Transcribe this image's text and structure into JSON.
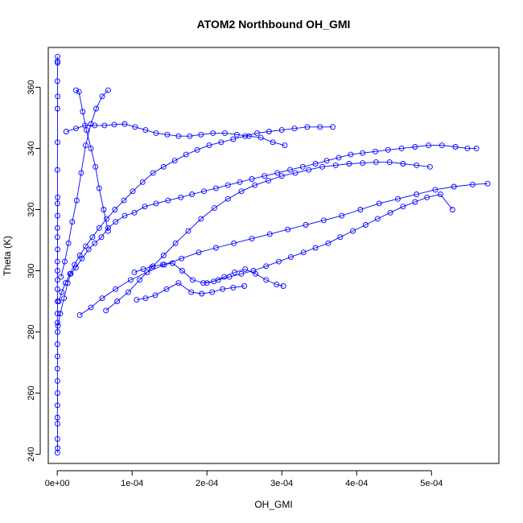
{
  "chart_data": {
    "type": "scatter",
    "title": "ATOM2 Northbound OH_GMI",
    "xlabel": "OH_GMI",
    "ylabel": "Theta (K)",
    "xlim": [
      -1.2e-05,
      0.00059
    ],
    "ylim": [
      237,
      373
    ],
    "grid": false,
    "legend": "none",
    "x_ticks": [
      {
        "value": 0,
        "label": "0e+00"
      },
      {
        "value": 0.0001,
        "label": "1e-04"
      },
      {
        "value": 0.0002,
        "label": "2e-04"
      },
      {
        "value": 0.0003,
        "label": "3e-04"
      },
      {
        "value": 0.0004,
        "label": "4e-04"
      },
      {
        "value": 0.0005,
        "label": "5e-04"
      }
    ],
    "y_ticks": [
      {
        "value": 240,
        "label": "240"
      },
      {
        "value": 260,
        "label": "260"
      },
      {
        "value": 280,
        "label": "280"
      },
      {
        "value": 300,
        "label": "300"
      },
      {
        "value": 320,
        "label": "320"
      },
      {
        "value": 340,
        "label": "340"
      },
      {
        "value": 360,
        "label": "360"
      }
    ],
    "colors": {
      "series": "#0000ff",
      "axis": "#000000",
      "background": "#ffffff"
    },
    "series": [
      {
        "x": [
          5e-07,
          3e-07,
          4e-07,
          2e-07,
          6e-07,
          3e-07,
          4e-07,
          2e-07,
          5e-07,
          3e-07,
          4e-07,
          2e-07,
          3e-07,
          5e-07,
          2e-07,
          4e-07,
          3e-07,
          2e-07,
          4e-07,
          3e-07,
          2e-07,
          5e-07,
          3e-07,
          4e-07,
          2e-07,
          3e-07,
          4e-07,
          3e-07,
          2e-07,
          4e-07,
          3e-07,
          5e-07,
          2e-07
        ],
        "y": [
          370,
          368.5,
          368,
          362,
          357,
          353,
          342,
          333,
          324,
          322,
          318,
          314,
          311,
          307,
          303,
          300,
          297,
          294,
          290,
          286,
          283,
          280,
          276,
          272,
          268,
          264,
          260,
          256,
          252,
          250,
          245,
          242,
          240.5
        ]
      },
      {
        "x": [
          1e-06,
          4e-06,
          9e-06,
          1.4e-05,
          1.8e-05,
          2.5e-05,
          3.3e-05,
          4.2e-05,
          5e-05,
          5.9e-05,
          6.8e-05,
          7.8e-05,
          9e-05,
          0.000103,
          0.000117,
          0.000132,
          0.000148,
          0.000165,
          0.00018,
          0.000196,
          0.000212,
          0.000228,
          0.000244,
          0.00026,
          0.000277,
          0.000294,
          0.000311,
          0.000328,
          0.000345,
          0.00036,
          0.000376,
          0.000392,
          0.000408,
          0.000425,
          0.000442,
          0.00046,
          0.000478,
          0.000496,
          0.000514,
          0.000532,
          0.000548,
          0.00056
        ],
        "y": [
          282,
          286,
          291,
          296,
          299,
          301,
          304,
          307,
          309,
          311,
          314,
          316,
          318,
          319,
          321,
          322,
          323,
          324,
          325,
          326,
          327,
          328,
          329,
          330,
          331,
          332,
          333,
          334,
          335,
          336,
          337,
          338,
          338.5,
          339,
          339.5,
          340,
          340.5,
          341,
          341,
          340.5,
          340,
          340
        ]
      },
      {
        "x": [
          2e-06,
          6e-06,
          1.1e-05,
          1.7e-05,
          2.3e-05,
          3e-05,
          3.8e-05,
          4.7e-05,
          5.6e-05,
          6.6e-05,
          7.7e-05,
          8.9e-05,
          0.000101,
          0.000114,
          0.000128,
          0.000142,
          0.000157,
          0.000172,
          0.000187,
          0.000203,
          0.000219,
          0.000235,
          0.000251,
          0.000267,
          0.000283,
          0.0003,
          0.000317,
          0.000334,
          0.000351,
          0.000368
        ],
        "y": [
          290,
          293,
          296,
          299,
          302,
          305,
          308,
          311,
          314,
          317,
          320,
          323,
          326,
          329,
          332,
          334,
          336,
          338,
          339.5,
          341,
          342,
          343,
          344,
          345,
          345.5,
          346,
          346.5,
          347,
          347,
          347
        ]
      },
      {
        "x": [
          1.2e-05,
          2.5e-05,
          3.7e-05,
          5e-05,
          6.3e-05,
          7.6e-05,
          9e-05,
          0.000104,
          0.000118,
          0.000132,
          0.000147,
          0.000162,
          0.000177,
          0.000192,
          0.000208,
          0.000224,
          0.00024,
          0.000256,
          0.000272,
          0.000288,
          0.000304
        ],
        "y": [
          345.5,
          346.5,
          347.5,
          347.5,
          347.5,
          347.8,
          348,
          347,
          346,
          345,
          344.5,
          344,
          344,
          344.5,
          345,
          345,
          344.5,
          344,
          343.5,
          342,
          341
        ]
      },
      {
        "x": [
          3e-05,
          4.5e-05,
          6e-05,
          7.8e-05,
          9.8e-05,
          0.00012,
          0.000143,
          0.000166,
          0.000189,
          0.000212,
          0.000236,
          0.00026,
          0.000284,
          0.000308,
          0.000332,
          0.000356,
          0.00038,
          0.000405,
          0.00043,
          0.000455,
          0.00048,
          0.000505,
          0.00053,
          0.000555,
          0.000575
        ],
        "y": [
          285.5,
          288,
          291,
          294,
          297,
          299.5,
          302,
          304,
          306,
          307.5,
          309,
          310.5,
          312,
          313.5,
          315,
          316.5,
          318,
          320,
          322,
          323.5,
          325,
          326.5,
          327.5,
          328.2,
          328.5
        ]
      },
      {
        "x": [
          5e-06,
          1e-05,
          1.5e-05,
          2e-05,
          2.6e-05,
          3.2e-05,
          3.8e-05,
          4.5e-05,
          5.2e-05,
          6e-05,
          6.8e-05
        ],
        "y": [
          298,
          303,
          309,
          316,
          323,
          332,
          341,
          348,
          353,
          357,
          359
        ]
      },
      {
        "x": [
          2.5e-05,
          2.9e-05,
          3.4e-05,
          3.9e-05,
          4.5e-05,
          5.1e-05,
          5.6e-05,
          6.2e-05,
          6.8e-05
        ],
        "y": [
          359,
          358.5,
          352,
          346,
          340,
          334,
          327,
          320,
          313
        ]
      },
      {
        "x": [
          0.000103,
          0.000115,
          0.000128,
          0.000141,
          0.000154,
          0.000167,
          0.000181,
          0.000195,
          0.000209,
          0.000223,
          0.000237,
          0.000251,
          0.000265,
          0.000279,
          0.000293,
          0.000302
        ],
        "y": [
          299.5,
          300.5,
          301.5,
          302,
          302.5,
          300,
          297,
          296,
          296.5,
          298,
          299.5,
          300.5,
          299,
          297,
          295.5,
          295
        ]
      },
      {
        "x": [
          0.000106,
          0.000118,
          0.000131,
          0.000146,
          0.000162,
          0.000179,
          0.000193,
          0.000207,
          0.000221,
          0.000235,
          0.00025
        ],
        "y": [
          290.5,
          291,
          292,
          294,
          296,
          293,
          292.5,
          293,
          294,
          294.5,
          295
        ]
      },
      {
        "x": [
          6.5e-05,
          8e-05,
          9.5e-05,
          0.00011,
          0.000126,
          0.000142,
          0.000158,
          0.000175,
          0.000192,
          0.00021,
          0.000228,
          0.000246,
          0.000264,
          0.000282,
          0.0003,
          0.000318,
          0.000336,
          0.000354,
          0.000372,
          0.00039,
          0.000408,
          0.000426,
          0.000444,
          0.000462,
          0.00048,
          0.000498
        ],
        "y": [
          287,
          290,
          293,
          297,
          301,
          305,
          309,
          313,
          317,
          320.5,
          323.5,
          326,
          328,
          329.5,
          331,
          332,
          333,
          334,
          334.5,
          335,
          335.2,
          335.5,
          335.5,
          335,
          334.5,
          334
        ]
      },
      {
        "x": [
          0.0002,
          0.000215,
          0.00023,
          0.000246,
          0.000262,
          0.000279,
          0.000296,
          0.000312,
          0.000329,
          0.000345,
          0.000362,
          0.000378,
          0.000395,
          0.000412,
          0.000428,
          0.000445,
          0.000462,
          0.000478,
          0.000494,
          0.000512,
          0.000528
        ],
        "y": [
          296,
          297,
          298,
          299,
          300,
          301.5,
          303,
          304.5,
          306,
          307.5,
          309,
          311,
          313,
          315,
          317,
          319,
          321,
          322.5,
          324,
          325,
          320
        ]
      }
    ]
  }
}
